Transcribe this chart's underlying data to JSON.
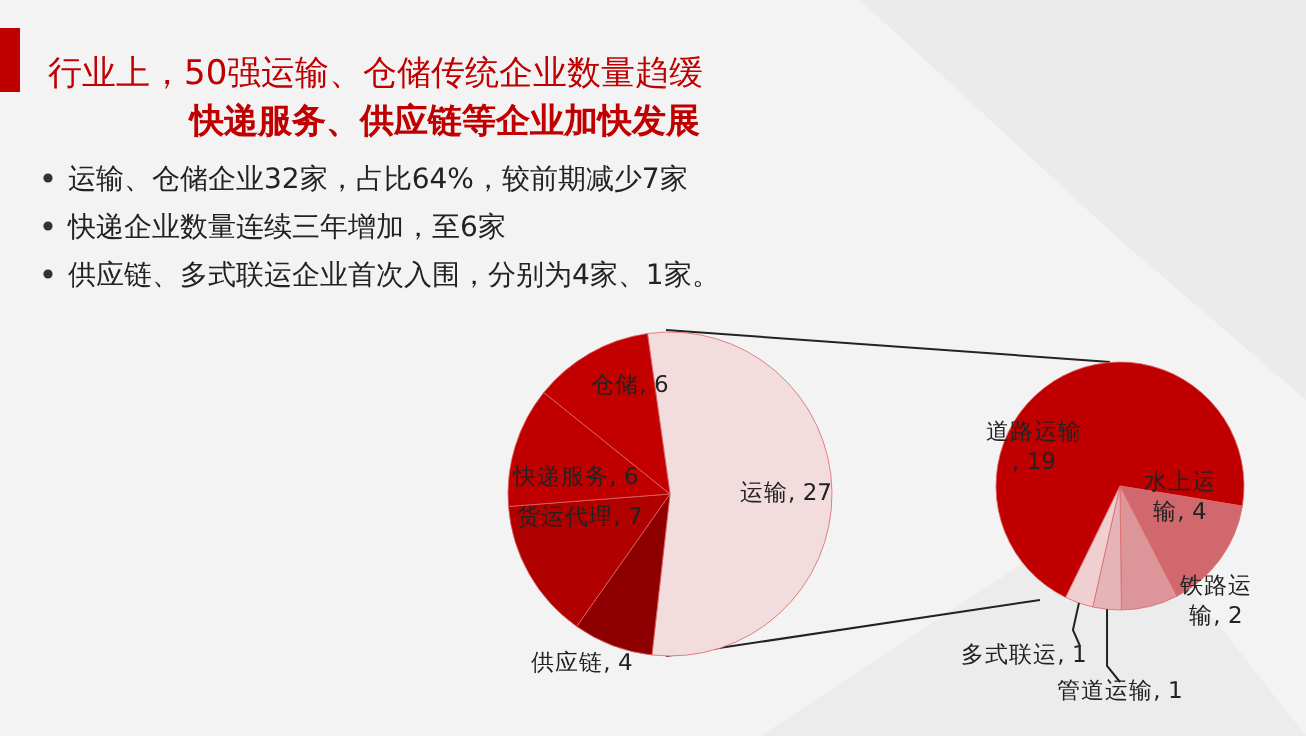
{
  "chart_data": [
    {
      "type": "pie",
      "title": "行业上，50强运输、仓储传统企业数量趋缓",
      "subtitle": "快递服务、供应链等企业加快发展",
      "annotations": [
        "运输、仓储企业32家，占比64%，较前期减少7家",
        "快递企业数量连续三年增加，至6家",
        "供应链、多式联运企业首次入围，分别为4家、1家。"
      ],
      "categories": [
        "运输",
        "供应链",
        "货运代理",
        "快递服务",
        "仓储"
      ],
      "values": [
        27,
        4,
        7,
        6,
        6
      ],
      "value_labels": [
        ", 27",
        ", 4",
        ", 7",
        ", 6",
        ", 6"
      ],
      "colors": [
        "#f2dcdd",
        "#8e0000",
        "#b00000",
        "#c00000",
        "#c20000"
      ]
    },
    {
      "type": "pie",
      "categories": [
        "道路运输",
        "水上运输",
        "铁路运输",
        "管道运输",
        "多式联运"
      ],
      "values": [
        19,
        4,
        2,
        1,
        1
      ],
      "value_labels": [
        ", 19",
        ", 4",
        ", 2",
        ", 1",
        ", 1"
      ],
      "colors": [
        "#c00000",
        "#d1686d",
        "#dc9598",
        "#e6b4b6",
        "#efcfd0"
      ]
    }
  ]
}
